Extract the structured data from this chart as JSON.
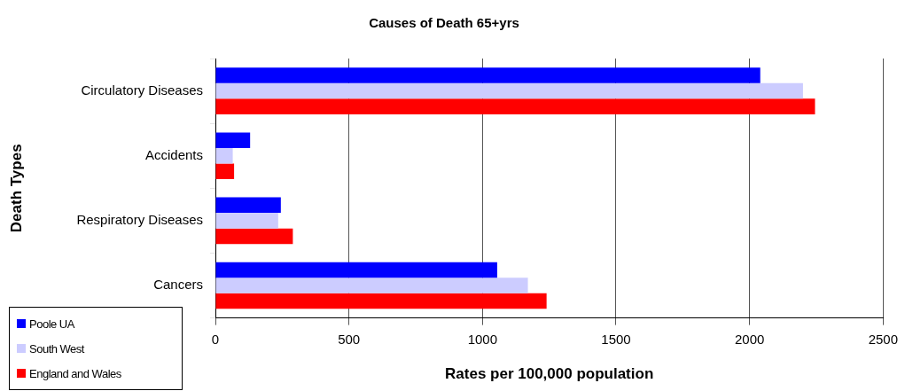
{
  "chart_data": {
    "type": "bar",
    "orientation": "horizontal",
    "title": "Causes of Death 65+yrs",
    "xlabel": "Rates per 100,000 population",
    "ylabel": "Death Types",
    "categories": [
      "Circulatory Diseases",
      "Accidents",
      "Respiratory Diseases",
      "Cancers"
    ],
    "series": [
      {
        "name": "Poole UA",
        "color": "#0000ff",
        "values": [
          2040,
          130,
          245,
          1055
        ]
      },
      {
        "name": "South West",
        "color": "#ccccff",
        "values": [
          2200,
          65,
          235,
          1170
        ]
      },
      {
        "name": "England and Wales",
        "color": "#ff0000",
        "values": [
          2245,
          70,
          290,
          1240
        ]
      }
    ],
    "xlim": [
      0,
      2500
    ],
    "xticks": [
      0,
      500,
      1000,
      1500,
      2000,
      2500
    ],
    "grid": "x",
    "legend": "bottom left"
  }
}
